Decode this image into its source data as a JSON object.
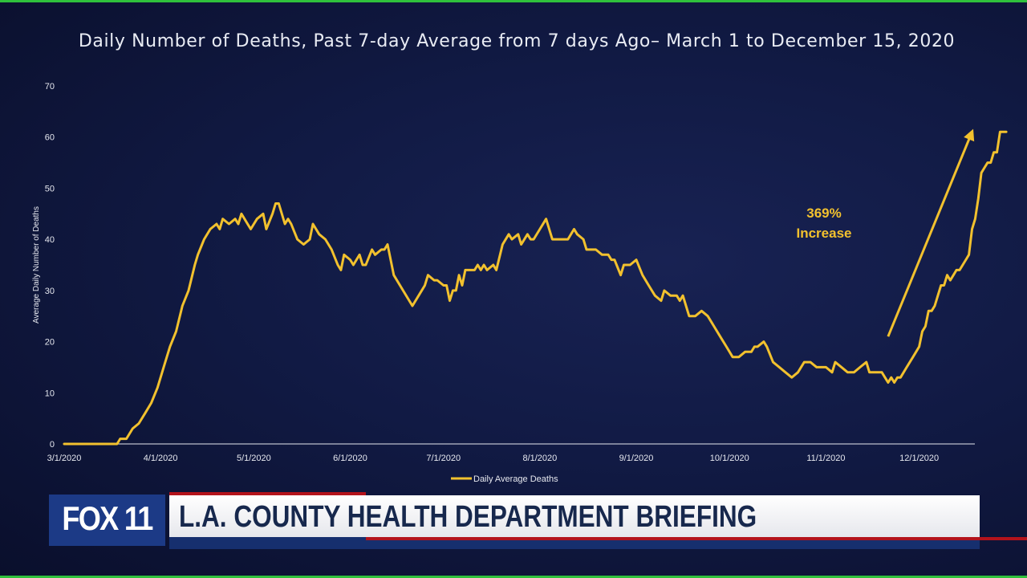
{
  "chart_data": {
    "type": "line",
    "title": "Daily Number of Deaths, Past 7-day Average from 7 days Ago– March 1 to December 15, 2020",
    "xlabel": "",
    "ylabel": "Average Daily Number of Deaths",
    "ylim": [
      0,
      70
    ],
    "yticks": [
      0,
      10,
      20,
      30,
      40,
      50,
      60,
      70
    ],
    "xticks": [
      "3/1/2020",
      "4/1/2020",
      "5/1/2020",
      "6/1/2020",
      "7/1/2020",
      "8/1/2020",
      "9/1/2020",
      "10/1/2020",
      "11/1/2020",
      "12/1/2020"
    ],
    "x_start": "3/1/2020",
    "x_end": "12/15/2020",
    "grid": false,
    "legend_position": "bottom",
    "series": [
      {
        "name": "Daily Average Deaths",
        "color": "#f2c12e",
        "points": [
          [
            "3/1/2020",
            0
          ],
          [
            "3/18/2020",
            0
          ],
          [
            "3/19/2020",
            1
          ],
          [
            "3/21/2020",
            1
          ],
          [
            "3/23/2020",
            3
          ],
          [
            "3/25/2020",
            4
          ],
          [
            "3/27/2020",
            6
          ],
          [
            "3/29/2020",
            8
          ],
          [
            "3/31/2020",
            11
          ],
          [
            "4/2/2020",
            15
          ],
          [
            "4/4/2020",
            19
          ],
          [
            "4/6/2020",
            22
          ],
          [
            "4/8/2020",
            27
          ],
          [
            "4/10/2020",
            30
          ],
          [
            "4/12/2020",
            35
          ],
          [
            "4/13/2020",
            37
          ],
          [
            "4/15/2020",
            40
          ],
          [
            "4/17/2020",
            42
          ],
          [
            "4/19/2020",
            43
          ],
          [
            "4/20/2020",
            42
          ],
          [
            "4/21/2020",
            44
          ],
          [
            "4/23/2020",
            43
          ],
          [
            "4/25/2020",
            44
          ],
          [
            "4/26/2020",
            43
          ],
          [
            "4/27/2020",
            45
          ],
          [
            "4/29/2020",
            43
          ],
          [
            "4/30/2020",
            42
          ],
          [
            "5/2/2020",
            44
          ],
          [
            "5/4/2020",
            45
          ],
          [
            "5/5/2020",
            42
          ],
          [
            "5/7/2020",
            45
          ],
          [
            "5/8/2020",
            47
          ],
          [
            "5/9/2020",
            47
          ],
          [
            "5/11/2020",
            43
          ],
          [
            "5/12/2020",
            44
          ],
          [
            "5/13/2020",
            43
          ],
          [
            "5/15/2020",
            40
          ],
          [
            "5/17/2020",
            39
          ],
          [
            "5/19/2020",
            40
          ],
          [
            "5/20/2020",
            43
          ],
          [
            "5/22/2020",
            41
          ],
          [
            "5/24/2020",
            40
          ],
          [
            "5/26/2020",
            38
          ],
          [
            "5/28/2020",
            35
          ],
          [
            "5/29/2020",
            34
          ],
          [
            "5/30/2020",
            37
          ],
          [
            "6/1/2020",
            36
          ],
          [
            "6/2/2020",
            35
          ],
          [
            "6/4/2020",
            37
          ],
          [
            "6/5/2020",
            35
          ],
          [
            "6/6/2020",
            35
          ],
          [
            "6/8/2020",
            38
          ],
          [
            "6/9/2020",
            37
          ],
          [
            "6/11/2020",
            38
          ],
          [
            "6/12/2020",
            38
          ],
          [
            "6/13/2020",
            39
          ],
          [
            "6/15/2020",
            33
          ],
          [
            "6/18/2020",
            30
          ],
          [
            "6/21/2020",
            27
          ],
          [
            "6/23/2020",
            29
          ],
          [
            "6/25/2020",
            31
          ],
          [
            "6/26/2020",
            33
          ],
          [
            "6/28/2020",
            32
          ],
          [
            "6/29/2020",
            32
          ],
          [
            "7/1/2020",
            31
          ],
          [
            "7/2/2020",
            31
          ],
          [
            "7/3/2020",
            28
          ],
          [
            "7/4/2020",
            30
          ],
          [
            "7/5/2020",
            30
          ],
          [
            "7/6/2020",
            33
          ],
          [
            "7/7/2020",
            31
          ],
          [
            "7/8/2020",
            34
          ],
          [
            "7/10/2020",
            34
          ],
          [
            "7/11/2020",
            34
          ],
          [
            "7/12/2020",
            35
          ],
          [
            "7/13/2020",
            34
          ],
          [
            "7/14/2020",
            35
          ],
          [
            "7/15/2020",
            34
          ],
          [
            "7/17/2020",
            35
          ],
          [
            "7/18/2020",
            34
          ],
          [
            "7/20/2020",
            39
          ],
          [
            "7/22/2020",
            41
          ],
          [
            "7/23/2020",
            40
          ],
          [
            "7/25/2020",
            41
          ],
          [
            "7/26/2020",
            39
          ],
          [
            "7/28/2020",
            41
          ],
          [
            "7/29/2020",
            40
          ],
          [
            "7/30/2020",
            40
          ],
          [
            "8/1/2020",
            42
          ],
          [
            "8/3/2020",
            44
          ],
          [
            "8/5/2020",
            40
          ],
          [
            "8/7/2020",
            40
          ],
          [
            "8/10/2020",
            40
          ],
          [
            "8/12/2020",
            42
          ],
          [
            "8/13/2020",
            41
          ],
          [
            "8/15/2020",
            40
          ],
          [
            "8/16/2020",
            38
          ],
          [
            "8/19/2020",
            38
          ],
          [
            "8/21/2020",
            37
          ],
          [
            "8/23/2020",
            37
          ],
          [
            "8/24/2020",
            36
          ],
          [
            "8/25/2020",
            36
          ],
          [
            "8/27/2020",
            33
          ],
          [
            "8/28/2020",
            35
          ],
          [
            "8/30/2020",
            35
          ],
          [
            "9/1/2020",
            36
          ],
          [
            "9/3/2020",
            33
          ],
          [
            "9/5/2020",
            31
          ],
          [
            "9/7/2020",
            29
          ],
          [
            "9/9/2020",
            28
          ],
          [
            "9/10/2020",
            30
          ],
          [
            "9/12/2020",
            29
          ],
          [
            "9/14/2020",
            29
          ],
          [
            "9/15/2020",
            28
          ],
          [
            "9/16/2020",
            29
          ],
          [
            "9/18/2020",
            25
          ],
          [
            "9/20/2020",
            25
          ],
          [
            "9/22/2020",
            26
          ],
          [
            "9/24/2020",
            25
          ],
          [
            "9/26/2020",
            23
          ],
          [
            "9/28/2020",
            21
          ],
          [
            "9/30/2020",
            19
          ],
          [
            "10/2/2020",
            17
          ],
          [
            "10/4/2020",
            17
          ],
          [
            "10/6/2020",
            18
          ],
          [
            "10/8/2020",
            18
          ],
          [
            "10/9/2020",
            19
          ],
          [
            "10/10/2020",
            19
          ],
          [
            "10/12/2020",
            20
          ],
          [
            "10/13/2020",
            19
          ],
          [
            "10/15/2020",
            16
          ],
          [
            "10/17/2020",
            15
          ],
          [
            "10/19/2020",
            14
          ],
          [
            "10/21/2020",
            13
          ],
          [
            "10/23/2020",
            14
          ],
          [
            "10/25/2020",
            16
          ],
          [
            "10/27/2020",
            16
          ],
          [
            "10/29/2020",
            15
          ],
          [
            "10/30/2020",
            15
          ],
          [
            "11/1/2020",
            15
          ],
          [
            "11/3/2020",
            14
          ],
          [
            "11/4/2020",
            16
          ],
          [
            "11/6/2020",
            15
          ],
          [
            "11/8/2020",
            14
          ],
          [
            "11/10/2020",
            14
          ],
          [
            "11/12/2020",
            15
          ],
          [
            "11/14/2020",
            16
          ],
          [
            "11/15/2020",
            14
          ],
          [
            "11/17/2020",
            14
          ],
          [
            "11/19/2020",
            14
          ],
          [
            "11/20/2020",
            13
          ],
          [
            "11/21/2020",
            12
          ],
          [
            "11/22/2020",
            13
          ],
          [
            "11/23/2020",
            12
          ],
          [
            "11/24/2020",
            13
          ],
          [
            "11/25/2020",
            13
          ],
          [
            "11/27/2020",
            15
          ],
          [
            "11/29/2020",
            17
          ],
          [
            "12/1/2020",
            19
          ],
          [
            "12/2/2020",
            22
          ],
          [
            "12/3/2020",
            23
          ],
          [
            "12/4/2020",
            26
          ],
          [
            "12/5/2020",
            26
          ],
          [
            "12/6/2020",
            27
          ],
          [
            "12/7/2020",
            29
          ],
          [
            "12/8/2020",
            31
          ],
          [
            "12/9/2020",
            31
          ],
          [
            "12/10/2020",
            33
          ],
          [
            "12/11/2020",
            32
          ],
          [
            "12/12/2020",
            33
          ],
          [
            "12/13/2020",
            34
          ],
          [
            "12/14/2020",
            34
          ],
          [
            "12/16/2020",
            36
          ],
          [
            "12/17/2020",
            37
          ],
          [
            "12/18/2020",
            42
          ],
          [
            "12/19/2020",
            44
          ],
          [
            "12/20/2020",
            48
          ],
          [
            "12/21/2020",
            53
          ],
          [
            "12/22/2020",
            54
          ],
          [
            "12/23/2020",
            55
          ],
          [
            "12/24/2020",
            55
          ],
          [
            "12/25/2020",
            57
          ],
          [
            "12/26/2020",
            57
          ],
          [
            "12/27/2020",
            61
          ],
          [
            "12/29/2020",
            61
          ]
        ]
      }
    ],
    "annotations": [
      {
        "lines": [
          "369%",
          "Increase"
        ],
        "arrow_from": [
          "11/21/2020",
          21
        ],
        "arrow_to": [
          "12/18/2020",
          61
        ]
      }
    ]
  },
  "broadcast": {
    "logo": "FOX 11",
    "headline": "L.A. COUNTY HEALTH DEPARTMENT BRIEFING"
  }
}
